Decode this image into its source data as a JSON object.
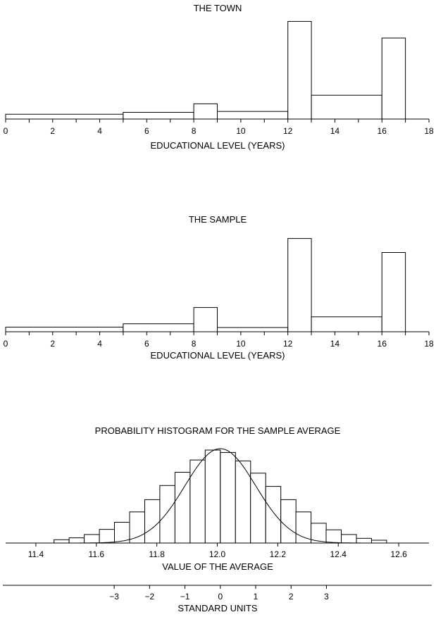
{
  "chart_data": [
    {
      "type": "histogram",
      "title": "THE TOWN",
      "xlabel": "EDUCATIONAL LEVEL (YEARS)",
      "xlim": [
        0,
        18
      ],
      "ticks": [
        "0",
        "2",
        "4",
        "6",
        "8",
        "10",
        "12",
        "14",
        "16",
        "18"
      ],
      "bins": [
        {
          "from": 0,
          "to": 5,
          "height": 1.0
        },
        {
          "from": 5,
          "to": 8,
          "height": 1.4
        },
        {
          "from": 8,
          "to": 9,
          "height": 3.2
        },
        {
          "from": 9,
          "to": 12,
          "height": 1.6
        },
        {
          "from": 12,
          "to": 13,
          "height": 20.5
        },
        {
          "from": 13,
          "to": 16,
          "height": 5.0
        },
        {
          "from": 16,
          "to": 17,
          "height": 17.0
        }
      ],
      "ymax": 21
    },
    {
      "type": "histogram",
      "title": "THE SAMPLE",
      "xlabel": "EDUCATIONAL LEVEL (YEARS)",
      "xlim": [
        0,
        18
      ],
      "ticks": [
        "0",
        "2",
        "4",
        "6",
        "8",
        "10",
        "12",
        "14",
        "16",
        "18"
      ],
      "bins": [
        {
          "from": 0,
          "to": 5,
          "height": 1.0
        },
        {
          "from": 5,
          "to": 8,
          "height": 1.7
        },
        {
          "from": 8,
          "to": 9,
          "height": 5.2
        },
        {
          "from": 9,
          "to": 12,
          "height": 0.9
        },
        {
          "from": 12,
          "to": 13,
          "height": 20.0
        },
        {
          "from": 13,
          "to": 16,
          "height": 3.2
        },
        {
          "from": 16,
          "to": 17,
          "height": 17.0
        }
      ],
      "ymax": 21
    },
    {
      "type": "histogram",
      "title": "PROBABILITY HISTOGRAM FOR THE SAMPLE AVERAGE",
      "xlabel": "VALUE OF THE AVERAGE",
      "xlim": [
        11.3,
        12.7
      ],
      "ticks": [
        "11.4",
        "11.6",
        "11.8",
        "12.0",
        "12.2",
        "12.4",
        "12.6"
      ],
      "bins": [
        {
          "from": 11.46,
          "to": 11.51,
          "height": 0.035
        },
        {
          "from": 11.51,
          "to": 11.56,
          "height": 0.055
        },
        {
          "from": 11.56,
          "to": 11.61,
          "height": 0.09
        },
        {
          "from": 11.61,
          "to": 11.66,
          "height": 0.145
        },
        {
          "from": 11.66,
          "to": 11.71,
          "height": 0.22
        },
        {
          "from": 11.71,
          "to": 11.76,
          "height": 0.33
        },
        {
          "from": 11.76,
          "to": 11.81,
          "height": 0.46
        },
        {
          "from": 11.81,
          "to": 11.86,
          "height": 0.61
        },
        {
          "from": 11.86,
          "to": 11.91,
          "height": 0.75
        },
        {
          "from": 11.91,
          "to": 11.96,
          "height": 0.88
        },
        {
          "from": 11.96,
          "to": 12.01,
          "height": 0.985
        },
        {
          "from": 12.01,
          "to": 12.06,
          "height": 0.96
        },
        {
          "from": 12.06,
          "to": 12.11,
          "height": 0.87
        },
        {
          "from": 12.11,
          "to": 12.16,
          "height": 0.74
        },
        {
          "from": 12.16,
          "to": 12.21,
          "height": 0.6
        },
        {
          "from": 12.21,
          "to": 12.26,
          "height": 0.46
        },
        {
          "from": 12.26,
          "to": 12.31,
          "height": 0.33
        },
        {
          "from": 12.31,
          "to": 12.36,
          "height": 0.21
        },
        {
          "from": 12.36,
          "to": 12.41,
          "height": 0.14
        },
        {
          "from": 12.41,
          "to": 12.46,
          "height": 0.09
        },
        {
          "from": 12.46,
          "to": 12.51,
          "height": 0.05
        },
        {
          "from": 12.51,
          "to": 12.56,
          "height": 0.03
        }
      ],
      "ymax": 1.0,
      "normal_curve": {
        "mean": 12.01,
        "sd": 0.117
      },
      "standard_units": {
        "label": "STANDARD UNITS",
        "ticks": [
          "−3",
          "−2",
          "−1",
          "0",
          "1",
          "2",
          "3"
        ]
      }
    }
  ]
}
